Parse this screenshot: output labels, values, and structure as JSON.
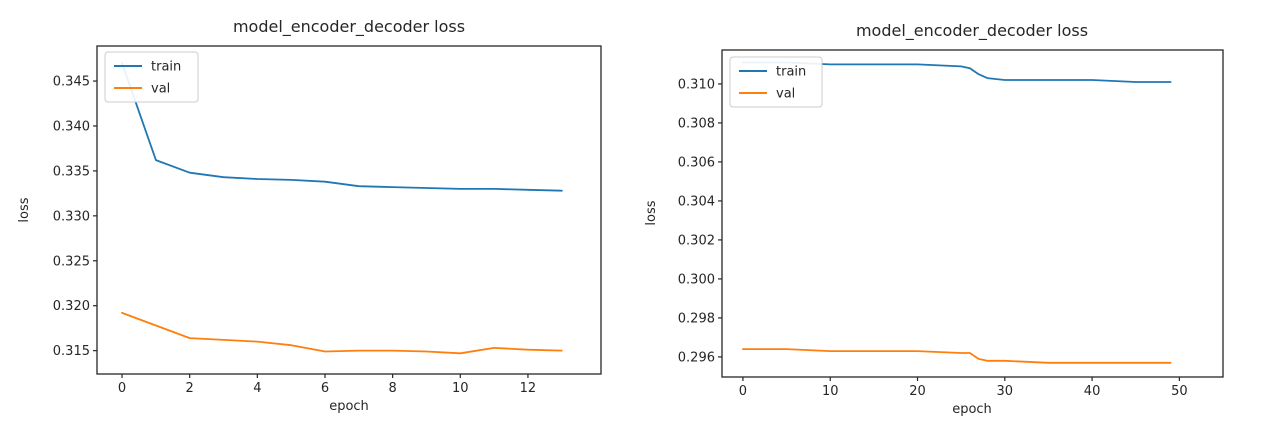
{
  "figure": {
    "description": "Two training loss curves for model_encoder_decoder"
  },
  "chart_data": [
    {
      "type": "line",
      "title": "model_encoder_decoder loss",
      "xlabel": "epoch",
      "ylabel": "loss",
      "xlim": [
        -0.74,
        14.16
      ],
      "ylim": [
        0.3124,
        0.3489
      ],
      "xticks": [
        0,
        2,
        4,
        6,
        8,
        10,
        12
      ],
      "yticks": [
        0.315,
        0.32,
        0.325,
        0.33,
        0.335,
        0.34,
        0.345
      ],
      "ytick_decimals": 3,
      "grid": false,
      "legend_position": "upper-left",
      "series": [
        {
          "name": "train",
          "color": "#1f77b4",
          "points": [
            [
              0,
              0.347
            ],
            [
              1,
              0.3362
            ],
            [
              2,
              0.3348
            ],
            [
              3,
              0.3343
            ],
            [
              4,
              0.3341
            ],
            [
              5,
              0.334
            ],
            [
              6,
              0.3338
            ],
            [
              7,
              0.3333
            ],
            [
              8,
              0.3332
            ],
            [
              9,
              0.3331
            ],
            [
              10,
              0.333
            ],
            [
              11,
              0.333
            ],
            [
              12,
              0.3329
            ],
            [
              13,
              0.3328
            ]
          ]
        },
        {
          "name": "val",
          "color": "#ff7f0e",
          "points": [
            [
              0,
              0.3192
            ],
            [
              1,
              0.3178
            ],
            [
              2,
              0.3164
            ],
            [
              3,
              0.3162
            ],
            [
              4,
              0.316
            ],
            [
              5,
              0.3156
            ],
            [
              6,
              0.3149
            ],
            [
              7,
              0.315
            ],
            [
              8,
              0.315
            ],
            [
              9,
              0.3149
            ],
            [
              10,
              0.3147
            ],
            [
              11,
              0.3153
            ],
            [
              12,
              0.3151
            ],
            [
              13,
              0.315
            ]
          ]
        }
      ]
    },
    {
      "type": "line",
      "title": "model_encoder_decoder loss",
      "xlabel": "epoch",
      "ylabel": "loss",
      "xlim": [
        -2.4,
        55.0
      ],
      "ylim": [
        0.29497,
        0.31174
      ],
      "xticks": [
        0,
        10,
        20,
        30,
        40,
        50
      ],
      "yticks": [
        0.296,
        0.298,
        0.3,
        0.302,
        0.304,
        0.306,
        0.308,
        0.31
      ],
      "ytick_decimals": 3,
      "grid": false,
      "legend_position": "upper-left",
      "series": [
        {
          "name": "train",
          "color": "#1f77b4",
          "points": [
            [
              0,
              0.3111
            ],
            [
              5,
              0.3111
            ],
            [
              10,
              0.311
            ],
            [
              15,
              0.311
            ],
            [
              20,
              0.311
            ],
            [
              25,
              0.3109
            ],
            [
              26,
              0.3108
            ],
            [
              27,
              0.3105
            ],
            [
              28,
              0.3103
            ],
            [
              30,
              0.3102
            ],
            [
              35,
              0.3102
            ],
            [
              40,
              0.3102
            ],
            [
              45,
              0.3101
            ],
            [
              49,
              0.3101
            ]
          ]
        },
        {
          "name": "val",
          "color": "#ff7f0e",
          "points": [
            [
              0,
              0.2964
            ],
            [
              5,
              0.2964
            ],
            [
              10,
              0.2963
            ],
            [
              15,
              0.2963
            ],
            [
              20,
              0.2963
            ],
            [
              25,
              0.2962
            ],
            [
              26,
              0.2962
            ],
            [
              27,
              0.2959
            ],
            [
              28,
              0.2958
            ],
            [
              30,
              0.2958
            ],
            [
              35,
              0.2957
            ],
            [
              40,
              0.2957
            ],
            [
              45,
              0.2957
            ],
            [
              49,
              0.2957
            ]
          ]
        }
      ]
    }
  ],
  "style": {
    "frame_color": "#262626",
    "text_color": "#262626",
    "legend_border": "#cccccc",
    "legend_fill": "#ffffff"
  }
}
